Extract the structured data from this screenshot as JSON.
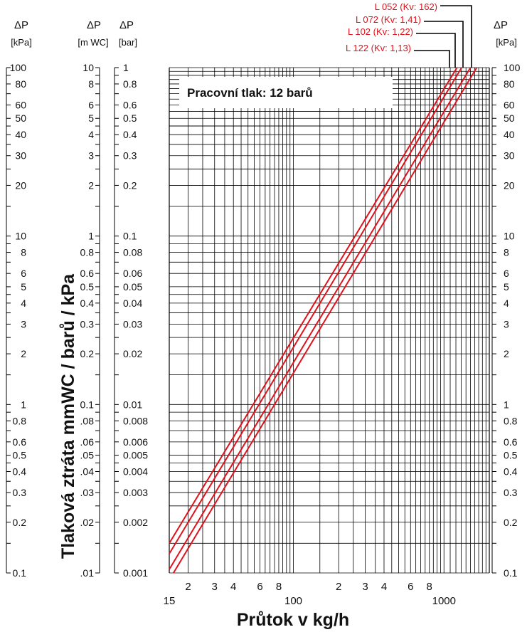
{
  "chart_data": {
    "type": "line",
    "annotation": "Pracovní tlak: 12 barů",
    "xlabel": "Průtok v kg/h",
    "ylabel": "Tlaková ztráta mmWC / barů / kPa",
    "x_scale": "log",
    "y_scale": "log",
    "xlim": [
      15,
      2000
    ],
    "ylim_kpa": [
      0.1,
      100
    ],
    "x_tick_labels": [
      {
        "value": 15,
        "label": "15",
        "row": "lower"
      },
      {
        "value": 20,
        "label": "2",
        "row": "upper"
      },
      {
        "value": 30,
        "label": "3",
        "row": "upper"
      },
      {
        "value": 40,
        "label": "4",
        "row": "upper"
      },
      {
        "value": 60,
        "label": "6",
        "row": "upper"
      },
      {
        "value": 80,
        "label": "8",
        "row": "upper"
      },
      {
        "value": 100,
        "label": "100",
        "row": "lower"
      },
      {
        "value": 200,
        "label": "2",
        "row": "upper"
      },
      {
        "value": 300,
        "label": "3",
        "row": "upper"
      },
      {
        "value": 400,
        "label": "4",
        "row": "upper"
      },
      {
        "value": 600,
        "label": "6",
        "row": "upper"
      },
      {
        "value": 800,
        "label": "8",
        "row": "upper"
      },
      {
        "value": 1000,
        "label": "1000",
        "row": "lower"
      }
    ],
    "y_axes": {
      "kpa": {
        "header": "ΔP",
        "unit": "[kPa]",
        "ticks": [
          {
            "v": 100,
            "l": "100"
          },
          {
            "v": 80,
            "l": "80"
          },
          {
            "v": 60,
            "l": "60"
          },
          {
            "v": 50,
            "l": "50"
          },
          {
            "v": 40,
            "l": "40"
          },
          {
            "v": 30,
            "l": "30"
          },
          {
            "v": 20,
            "l": "20"
          },
          {
            "v": 10,
            "l": "10"
          },
          {
            "v": 8,
            "l": "8"
          },
          {
            "v": 6,
            "l": "6"
          },
          {
            "v": 5,
            "l": "5"
          },
          {
            "v": 4,
            "l": "4"
          },
          {
            "v": 3,
            "l": "3"
          },
          {
            "v": 2,
            "l": "2"
          },
          {
            "v": 1,
            "l": "1"
          },
          {
            "v": 0.8,
            "l": "0.8"
          },
          {
            "v": 0.6,
            "l": "0.6"
          },
          {
            "v": 0.5,
            "l": "0.5"
          },
          {
            "v": 0.4,
            "l": "0.4"
          },
          {
            "v": 0.3,
            "l": "0.3"
          },
          {
            "v": 0.2,
            "l": "0.2"
          },
          {
            "v": 0.1,
            "l": "0.1"
          }
        ]
      },
      "mwc": {
        "header": "ΔP",
        "unit": "[m WC]",
        "ticks": [
          {
            "v": 10,
            "l": "10"
          },
          {
            "v": 8,
            "l": "8"
          },
          {
            "v": 6,
            "l": "6"
          },
          {
            "v": 5,
            "l": "5"
          },
          {
            "v": 4,
            "l": "4"
          },
          {
            "v": 3,
            "l": "3"
          },
          {
            "v": 2,
            "l": "2"
          },
          {
            "v": 1,
            "l": "1"
          },
          {
            "v": 0.8,
            "l": "0.8"
          },
          {
            "v": 0.6,
            "l": "0.6"
          },
          {
            "v": 0.5,
            "l": "0.5"
          },
          {
            "v": 0.4,
            "l": "0.4"
          },
          {
            "v": 0.3,
            "l": "0.3"
          },
          {
            "v": 0.2,
            "l": "0.2"
          },
          {
            "v": 0.1,
            "l": "0.1"
          },
          {
            "v": 0.08,
            "l": ".08"
          },
          {
            "v": 0.06,
            "l": ".06"
          },
          {
            "v": 0.05,
            "l": ".05"
          },
          {
            "v": 0.04,
            "l": ".04"
          },
          {
            "v": 0.03,
            "l": ".03"
          },
          {
            "v": 0.02,
            "l": ".02"
          },
          {
            "v": 0.01,
            "l": ".01"
          }
        ]
      },
      "bar": {
        "header": "ΔP",
        "unit": "[bar]",
        "ticks": [
          {
            "v": 1,
            "l": "1"
          },
          {
            "v": 0.8,
            "l": "0.8"
          },
          {
            "v": 0.6,
            "l": "0.6"
          },
          {
            "v": 0.5,
            "l": "0.5"
          },
          {
            "v": 0.4,
            "l": "0.4"
          },
          {
            "v": 0.3,
            "l": "0.3"
          },
          {
            "v": 0.2,
            "l": "0.2"
          },
          {
            "v": 0.1,
            "l": "0.1"
          },
          {
            "v": 0.08,
            "l": "0.08"
          },
          {
            "v": 0.06,
            "l": "0.06"
          },
          {
            "v": 0.05,
            "l": "0.05"
          },
          {
            "v": 0.04,
            "l": "0.04"
          },
          {
            "v": 0.03,
            "l": "0.03"
          },
          {
            "v": 0.02,
            "l": "0.02"
          },
          {
            "v": 0.01,
            "l": "0.01"
          },
          {
            "v": 0.008,
            "l": "0.008"
          },
          {
            "v": 0.006,
            "l": "0.006"
          },
          {
            "v": 0.005,
            "l": "0.005"
          },
          {
            "v": 0.004,
            "l": "0.004"
          },
          {
            "v": 0.003,
            "l": "0.003"
          },
          {
            "v": 0.002,
            "l": "0.002"
          },
          {
            "v": 0.001,
            "l": "0.001"
          }
        ]
      },
      "kpa_right": {
        "header": "ΔP",
        "unit": "[kPa]",
        "ticks": [
          {
            "v": 100,
            "l": "100"
          },
          {
            "v": 80,
            "l": "80"
          },
          {
            "v": 60,
            "l": "60"
          },
          {
            "v": 50,
            "l": "50"
          },
          {
            "v": 40,
            "l": "40"
          },
          {
            "v": 30,
            "l": "30"
          },
          {
            "v": 20,
            "l": "20"
          },
          {
            "v": 10,
            "l": "10"
          },
          {
            "v": 8,
            "l": "8"
          },
          {
            "v": 6,
            "l": "6"
          },
          {
            "v": 5,
            "l": "5"
          },
          {
            "v": 4,
            "l": "4"
          },
          {
            "v": 3,
            "l": "3"
          },
          {
            "v": 2,
            "l": "2"
          },
          {
            "v": 1,
            "l": "1"
          },
          {
            "v": 0.8,
            "l": "0.8"
          },
          {
            "v": 0.6,
            "l": "0.6"
          },
          {
            "v": 0.5,
            "l": "0.5"
          },
          {
            "v": 0.4,
            "l": "0.4"
          },
          {
            "v": 0.3,
            "l": "0.3"
          },
          {
            "v": 0.2,
            "l": "0.2"
          },
          {
            "v": 0.1,
            "l": "0.1"
          }
        ]
      }
    },
    "series": [
      {
        "name": "L 052 (Kv: 162)",
        "color": "#e0121b",
        "x": [
          15,
          1220
        ],
        "y_kpa": [
          0.15,
          100
        ]
      },
      {
        "name": "L 072 (Kv: 1,41)",
        "color": "#e0121b",
        "x": [
          15,
          1310
        ],
        "y_kpa": [
          0.13,
          100
        ]
      },
      {
        "name": "L 102 (Kv: 1,22)",
        "color": "#e0121b",
        "x": [
          15,
          1500
        ],
        "y_kpa": [
          0.105,
          100
        ]
      },
      {
        "name": "L 122 (Kv: 1,13)",
        "color": "#e0121b",
        "x": [
          16,
          1650
        ],
        "y_kpa": [
          0.1,
          100
        ]
      }
    ]
  }
}
